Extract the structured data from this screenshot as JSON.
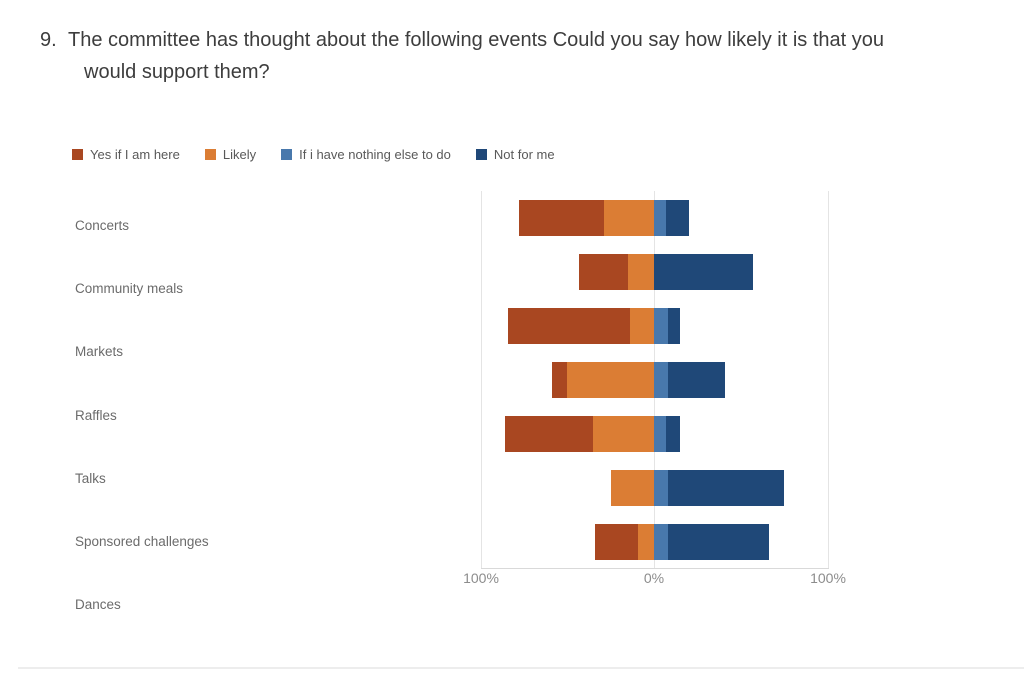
{
  "title": {
    "number": "9.",
    "line1": "The committee has thought about the following events Could you say how likely it is that you",
    "line2": "would support them?"
  },
  "legend": [
    {
      "label": "Yes if I am here",
      "color": "#A94721"
    },
    {
      "label": "Likely",
      "color": "#DB7D34"
    },
    {
      "label": "If i have nothing else to do",
      "color": "#4878AC"
    },
    {
      "label": "Not for me",
      "color": "#1F4878"
    }
  ],
  "chart_data": {
    "type": "bar",
    "subtype": "diverging-stacked",
    "orientation": "horizontal",
    "title": "9. The committee has thought about the following events Could you say how likely it is that you would support them?",
    "categories": [
      "Concerts",
      "Community meals",
      "Markets",
      "Raffles",
      "Talks",
      "Sponsored challenges",
      "Dances"
    ],
    "series": [
      {
        "name": "Yes if I am here",
        "color": "#A94721",
        "side": "left",
        "values": [
          49,
          28,
          70,
          9,
          51,
          0,
          25
        ]
      },
      {
        "name": "Likely",
        "color": "#DB7D34",
        "side": "left",
        "values": [
          29,
          15,
          14,
          50,
          35,
          25,
          9
        ]
      },
      {
        "name": "If i have nothing else to do",
        "color": "#4878AC",
        "side": "right",
        "values": [
          7,
          0,
          8,
          8,
          7,
          8,
          8
        ]
      },
      {
        "name": "Not for me",
        "color": "#1F4878",
        "side": "right",
        "values": [
          13,
          57,
          7,
          33,
          8,
          67,
          58
        ]
      }
    ],
    "x_axis": {
      "ticks": [
        "100%",
        "0%",
        "100%"
      ],
      "range": [
        -100,
        100
      ],
      "unit": "percent"
    },
    "legend_position": "top",
    "grid": "vertical-gridlines-at-ticks"
  }
}
